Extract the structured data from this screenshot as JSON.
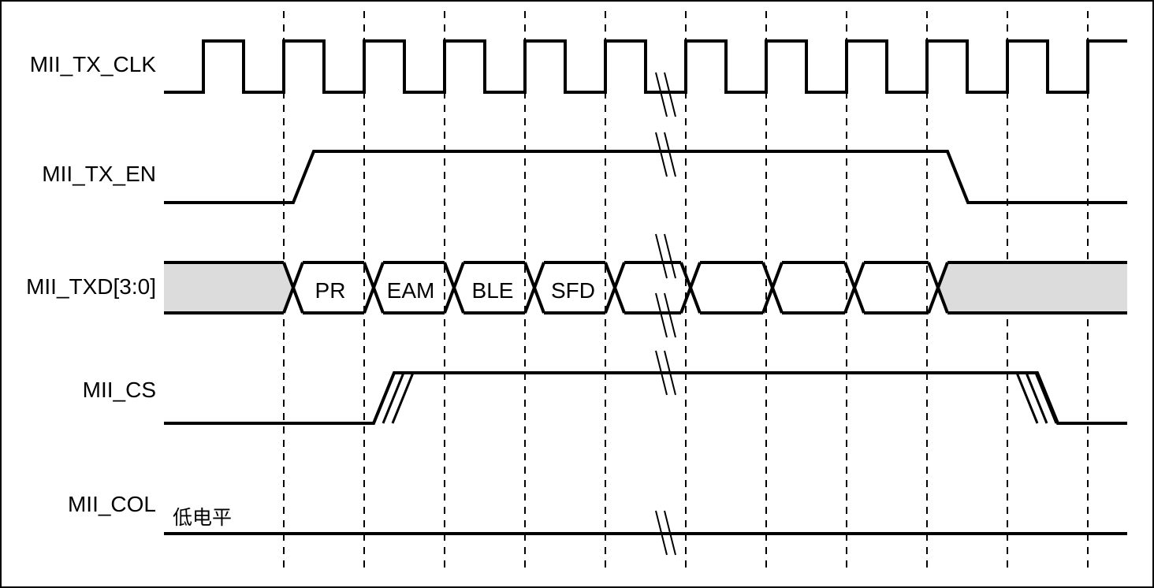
{
  "signals": {
    "tx_clk": "MII_TX_CLK",
    "tx_en": "MII_TX_EN",
    "txd": "MII_TXD[3:0]",
    "cs": "MII_CS",
    "col": "MII_COL"
  },
  "txd_segments": [
    "PR",
    "EAM",
    "BLE",
    "SFD"
  ],
  "col_note": "低电平",
  "colors": {
    "line": "#000000",
    "idle_fill": "#dcdcdc",
    "background": "#ffffff"
  }
}
